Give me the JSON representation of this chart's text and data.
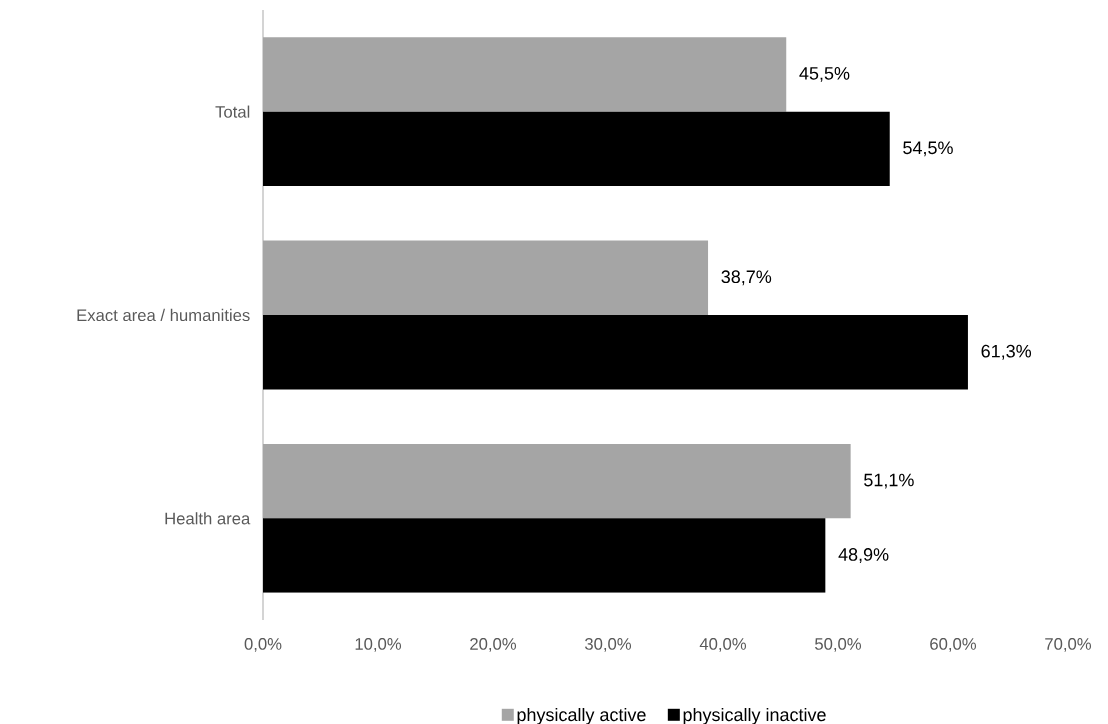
{
  "chart_data": {
    "type": "bar",
    "orientation": "horizontal",
    "categories": [
      "Total",
      "Exact area / humanities",
      "Health area"
    ],
    "series": [
      {
        "name": "physically active",
        "color": "#a5a5a5",
        "values": [
          45.5,
          38.7,
          51.1
        ],
        "value_labels": [
          "45,5%",
          "38,7%",
          "51,1%"
        ]
      },
      {
        "name": "physically inactive",
        "color": "#000000",
        "values": [
          54.5,
          61.3,
          48.9
        ],
        "value_labels": [
          "54,5%",
          "61,3%",
          "48,9%"
        ]
      }
    ],
    "xlim": [
      0,
      70
    ],
    "xticks": [
      {
        "value": 0,
        "label": "0,0%"
      },
      {
        "value": 10,
        "label": "10,0%"
      },
      {
        "value": 20,
        "label": "20,0%"
      },
      {
        "value": 30,
        "label": "30,0%"
      },
      {
        "value": 40,
        "label": "40,0%"
      },
      {
        "value": 50,
        "label": "50,0%"
      },
      {
        "value": 60,
        "label": "60,0%"
      },
      {
        "value": 70,
        "label": "70,0%"
      }
    ],
    "grid": false,
    "legend": "bottom"
  }
}
